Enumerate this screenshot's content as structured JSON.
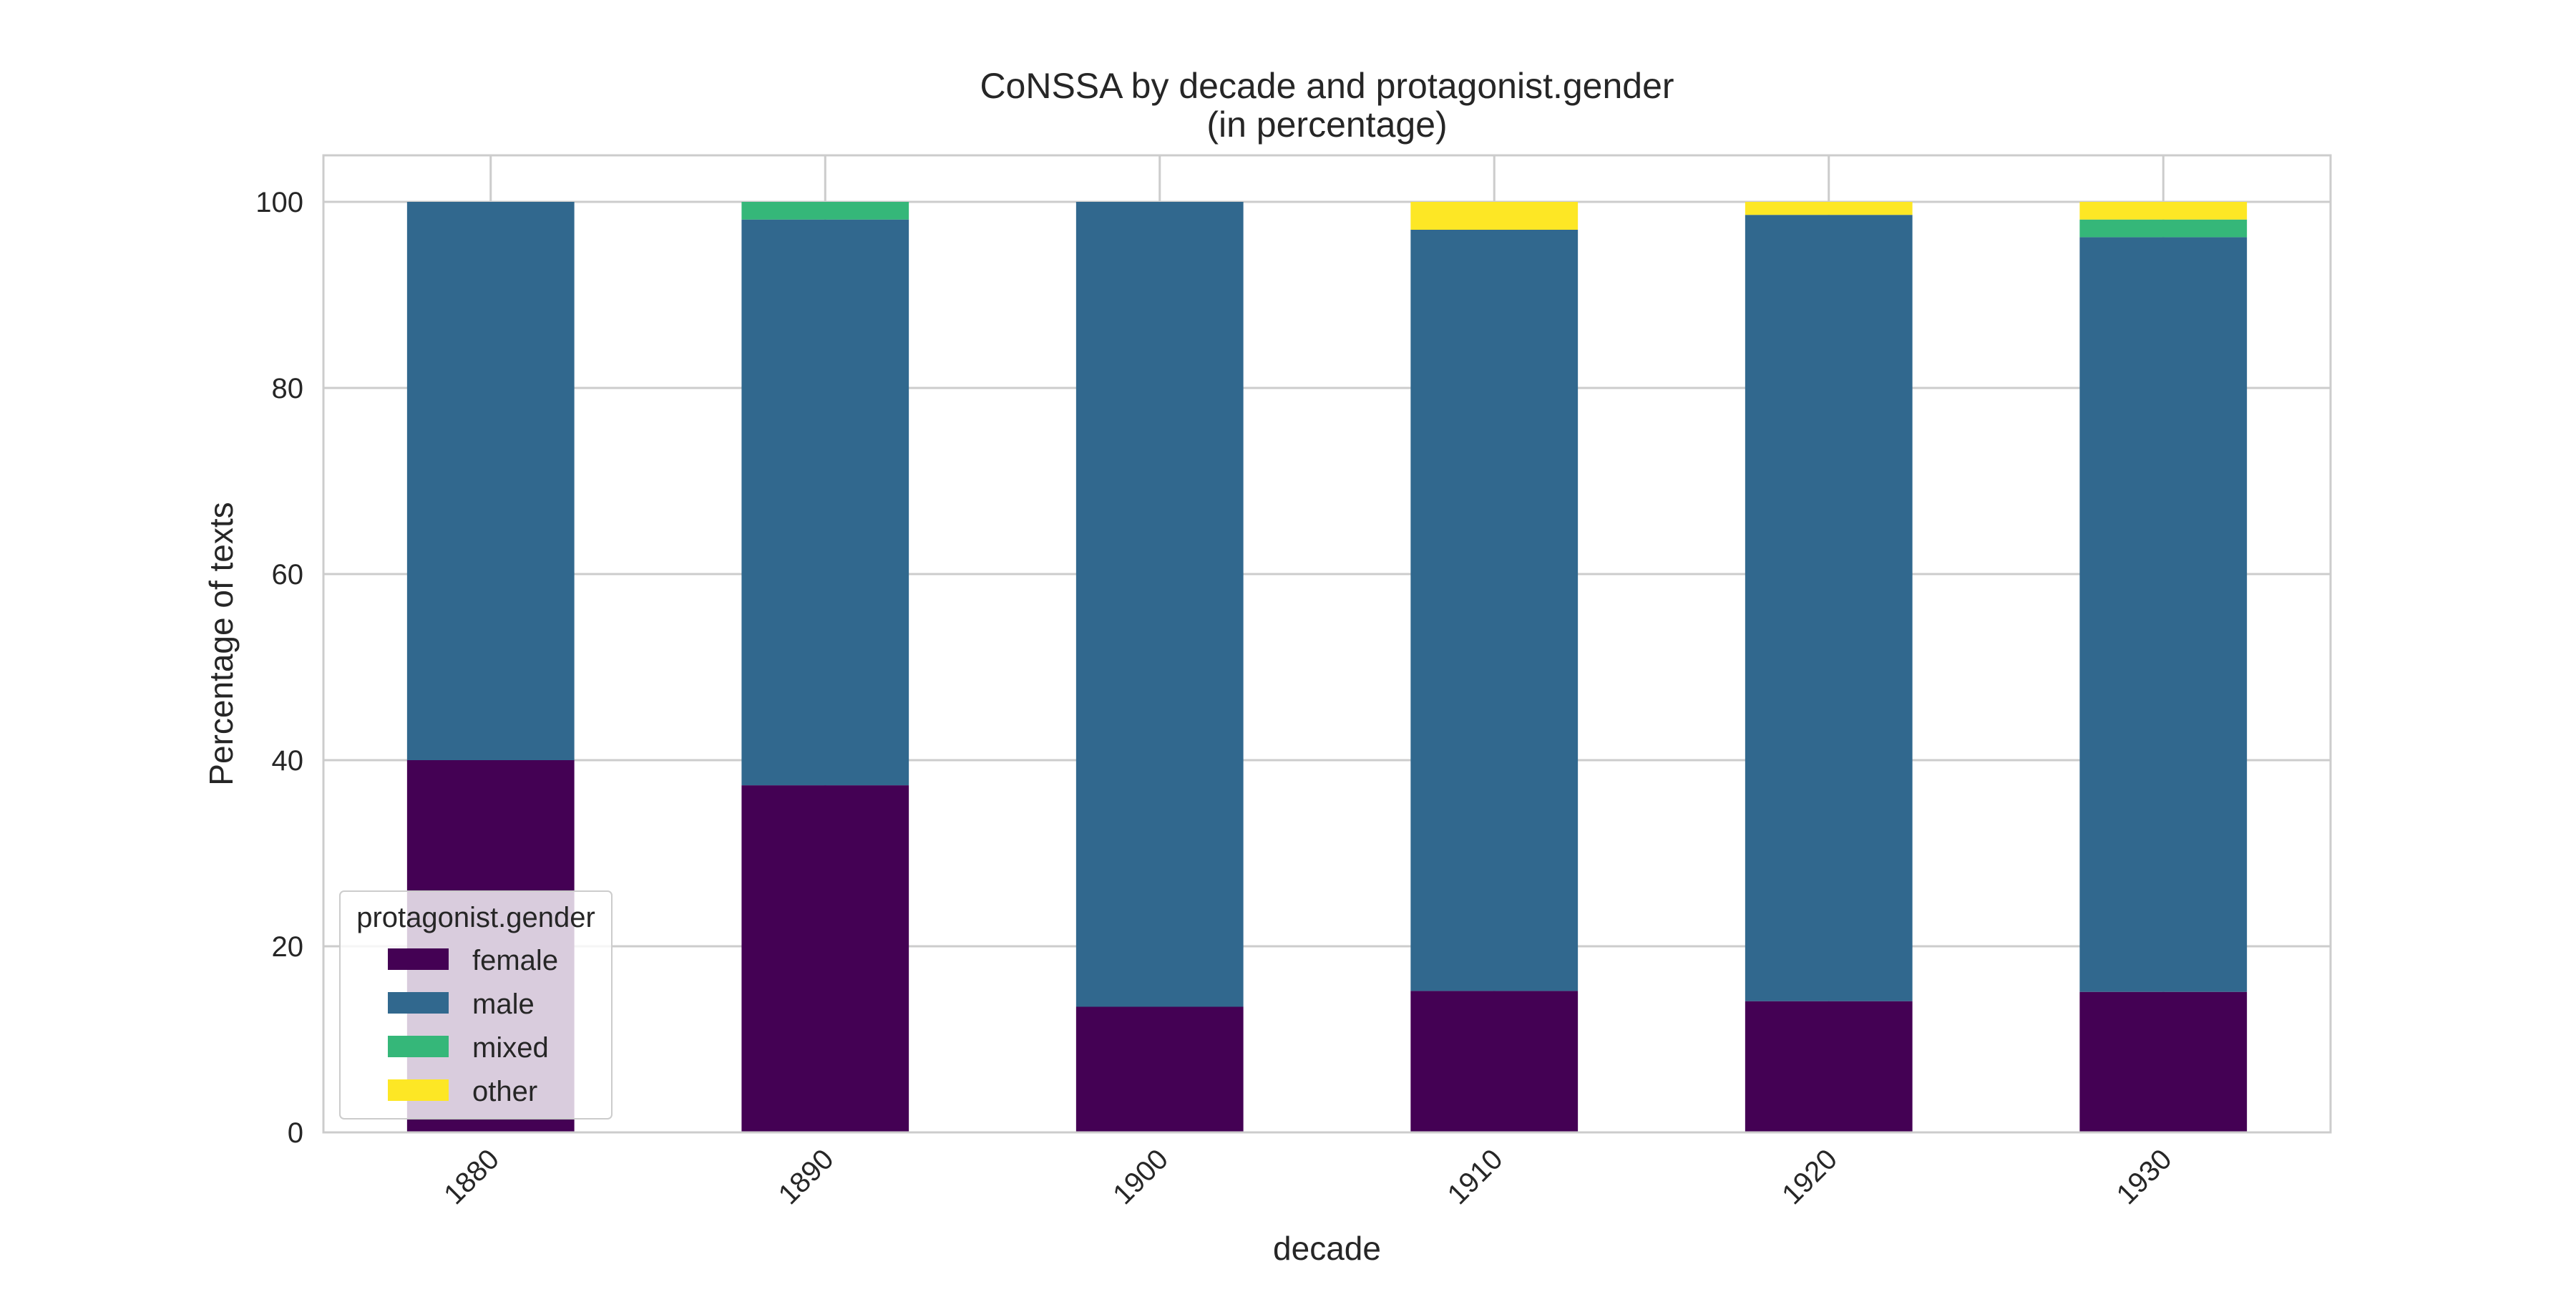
{
  "chart_data": {
    "type": "bar",
    "stacked": true,
    "title": "CoNSSA by decade and protagonist.gender",
    "subtitle": "(in percentage)",
    "xlabel": "decade",
    "ylabel": "Percentage of texts",
    "categories": [
      "1880",
      "1890",
      "1900",
      "1910",
      "1920",
      "1930"
    ],
    "ylim": [
      0,
      105
    ],
    "yticks": [
      0,
      20,
      40,
      60,
      80,
      100
    ],
    "grid": true,
    "legend": {
      "title": "protagonist.gender",
      "placement": "lower-left"
    },
    "series": [
      {
        "name": "female",
        "color": "#440154",
        "values": [
          40.0,
          37.3,
          13.5,
          15.2,
          14.1,
          15.1
        ]
      },
      {
        "name": "male",
        "color": "#31688e",
        "values": [
          60.0,
          60.8,
          86.5,
          81.8,
          84.5,
          81.1
        ]
      },
      {
        "name": "mixed",
        "color": "#35b779",
        "values": [
          0.0,
          1.9,
          0.0,
          0.0,
          0.0,
          1.9
        ]
      },
      {
        "name": "other",
        "color": "#fde725",
        "values": [
          0.0,
          0.0,
          0.0,
          3.0,
          1.4,
          1.9
        ]
      }
    ]
  }
}
